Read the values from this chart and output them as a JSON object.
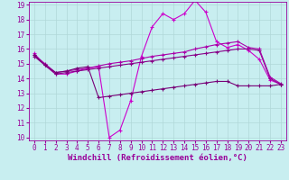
{
  "xlabel": "Windchill (Refroidissement éolien,°C)",
  "background_color": "#c8eef0",
  "grid_color": "#b0d8d8",
  "line_color": "#990099",
  "xlim": [
    -0.5,
    23.5
  ],
  "ylim": [
    9.8,
    19.2
  ],
  "yticks": [
    10,
    11,
    12,
    13,
    14,
    15,
    16,
    17,
    18,
    19
  ],
  "xticks": [
    0,
    1,
    2,
    3,
    4,
    5,
    6,
    7,
    8,
    9,
    10,
    11,
    12,
    13,
    14,
    15,
    16,
    17,
    18,
    19,
    20,
    21,
    22,
    23
  ],
  "series": [
    {
      "x": [
        0,
        1,
        2,
        3,
        4,
        5,
        6,
        7,
        8,
        9,
        10,
        11,
        12,
        13,
        14,
        15,
        16,
        17,
        18,
        19,
        20,
        21,
        22,
        23
      ],
      "y": [
        15.7,
        14.9,
        14.3,
        14.3,
        14.5,
        14.7,
        14.8,
        10.0,
        10.5,
        12.5,
        15.5,
        17.5,
        18.4,
        18.0,
        18.4,
        19.3,
        18.5,
        16.5,
        16.1,
        16.3,
        15.9,
        15.3,
        13.9,
        13.6
      ],
      "color": "#cc00cc",
      "lw": 0.8
    },
    {
      "x": [
        0,
        1,
        2,
        3,
        4,
        5,
        6,
        7,
        8,
        9,
        10,
        11,
        12,
        13,
        14,
        15,
        16,
        17,
        18,
        19,
        20,
        21,
        22,
        23
      ],
      "y": [
        15.5,
        14.9,
        14.3,
        14.4,
        14.5,
        14.6,
        14.7,
        14.8,
        14.9,
        15.0,
        15.1,
        15.2,
        15.3,
        15.4,
        15.5,
        15.6,
        15.7,
        15.8,
        15.9,
        16.0,
        16.0,
        15.9,
        14.0,
        13.6
      ],
      "color": "#880088",
      "lw": 0.8
    },
    {
      "x": [
        0,
        1,
        2,
        3,
        4,
        5,
        6,
        7,
        8,
        9,
        10,
        11,
        12,
        13,
        14,
        15,
        16,
        17,
        18,
        19,
        20,
        21,
        22,
        23
      ],
      "y": [
        15.6,
        15.0,
        14.4,
        14.5,
        14.6,
        14.7,
        14.85,
        15.0,
        15.1,
        15.2,
        15.35,
        15.5,
        15.6,
        15.7,
        15.8,
        16.0,
        16.15,
        16.3,
        16.4,
        16.5,
        16.1,
        16.0,
        14.1,
        13.65
      ],
      "color": "#aa00aa",
      "lw": 0.8
    },
    {
      "x": [
        0,
        1,
        2,
        3,
        4,
        5,
        6,
        7,
        8,
        9,
        10,
        11,
        12,
        13,
        14,
        15,
        16,
        17,
        18,
        19,
        20,
        21,
        22,
        23
      ],
      "y": [
        15.6,
        14.9,
        14.4,
        14.5,
        14.7,
        14.8,
        12.7,
        12.8,
        12.9,
        13.0,
        13.1,
        13.2,
        13.3,
        13.4,
        13.5,
        13.6,
        13.7,
        13.8,
        13.8,
        13.5,
        13.5,
        13.5,
        13.5,
        13.6
      ],
      "color": "#770077",
      "lw": 0.8
    }
  ],
  "marker": "+",
  "markersize": 3,
  "markeredgewidth": 0.8,
  "tick_fontsize": 5.5,
  "label_fontsize": 6.5
}
